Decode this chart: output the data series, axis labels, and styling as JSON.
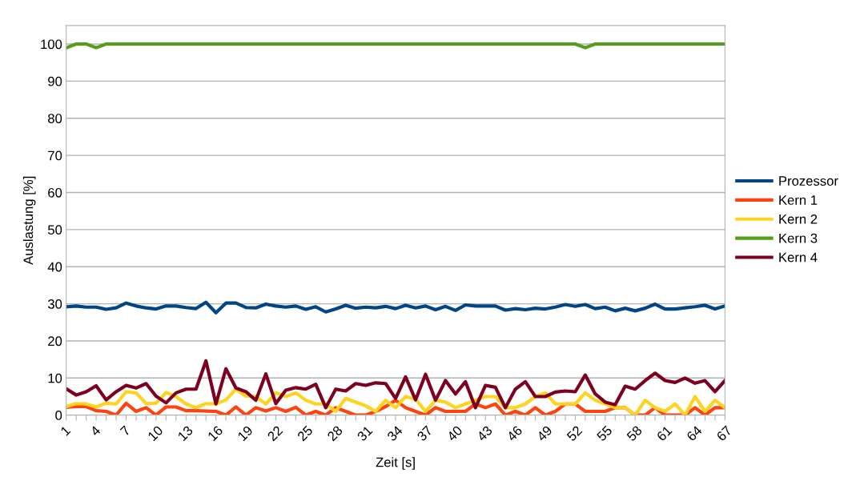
{
  "chart_data": {
    "type": "line",
    "xlabel": "Zeit [s]",
    "ylabel": "Auslastung [%]",
    "categories": [
      "1",
      null,
      null,
      "4",
      null,
      null,
      "7",
      null,
      null,
      "10",
      null,
      null,
      "13",
      null,
      null,
      "16",
      null,
      null,
      "19",
      null,
      null,
      "22",
      null,
      null,
      "25",
      null,
      null,
      "28",
      null,
      null,
      "31",
      null,
      null,
      "34",
      null,
      null,
      "37",
      null,
      null,
      "40",
      null,
      null,
      "43",
      null,
      null,
      "46",
      null,
      null,
      "49",
      null,
      null,
      "52",
      null,
      null,
      "55",
      null,
      null,
      "58",
      null,
      null,
      "61",
      null,
      null,
      "64",
      null,
      null,
      "67"
    ],
    "ylim": [
      0,
      105
    ],
    "yticks": [
      0,
      10,
      20,
      30,
      40,
      50,
      60,
      70,
      80,
      90,
      100
    ],
    "grid": "y",
    "legend": "right",
    "marker": "none",
    "line_style": "solid",
    "series": [
      {
        "name": "Prozessor",
        "color": "#004586",
        "values": [
          29.2,
          29.4,
          29.1,
          29.1,
          28.5,
          28.9,
          30.2,
          29.4,
          28.9,
          28.6,
          29.4,
          29.4,
          29.0,
          28.7,
          30.4,
          27.6,
          30.2,
          30.2,
          29.0,
          28.9,
          29.9,
          29.4,
          29.1,
          29.4,
          28.5,
          29.2,
          27.8,
          28.6,
          29.6,
          28.8,
          29.1,
          28.9,
          29.3,
          28.7,
          29.6,
          28.9,
          29.4,
          28.4,
          29.3,
          28.2,
          29.7,
          29.4,
          29.4,
          29.4,
          28.3,
          28.7,
          28.4,
          28.8,
          28.6,
          29.1,
          29.8,
          29.3,
          29.8,
          28.7,
          29.1,
          28.1,
          28.8,
          28.1,
          28.8,
          29.9,
          28.6,
          28.6,
          28.9,
          29.2,
          29.6,
          28.6,
          29.4
        ]
      },
      {
        "name": "Kern 1",
        "color": "#ff420e",
        "values": [
          2.1,
          2.3,
          2.3,
          1.2,
          1.0,
          0,
          3.2,
          1.0,
          2.0,
          0,
          2.2,
          2.2,
          1.2,
          1.2,
          1.1,
          1.0,
          0,
          2.2,
          0,
          2.0,
          1.1,
          2.0,
          1.0,
          2.1,
          0,
          1.0,
          0,
          2.0,
          1.0,
          0,
          0,
          1.0,
          2.3,
          4.0,
          2.0,
          1.0,
          0,
          2.0,
          1.0,
          1.0,
          1.0,
          3.0,
          2.0,
          3.0,
          0,
          1.0,
          0,
          2.0,
          0,
          1.0,
          3.0,
          3.0,
          1.0,
          1.0,
          1.0,
          2.0,
          2.0,
          0,
          0,
          2.0,
          0,
          0,
          0,
          2.0,
          0,
          2.0,
          2.0
        ]
      },
      {
        "name": "Kern 2",
        "color": "#ffd320",
        "values": [
          2.3,
          3.1,
          3.0,
          2.2,
          3.2,
          3.0,
          6.3,
          6.0,
          3.1,
          3.2,
          6.1,
          5.0,
          3.0,
          2.0,
          3.1,
          3.0,
          4.1,
          7.0,
          5.1,
          5.0,
          3.0,
          6.0,
          5.0,
          6.0,
          4.0,
          3.0,
          3.0,
          1.0,
          4.5,
          3.5,
          2.5,
          1.0,
          4.0,
          2.0,
          5.0,
          4.3,
          1.0,
          4.0,
          3.5,
          2.0,
          3.0,
          4.0,
          5.0,
          5.0,
          2.0,
          2.0,
          3.0,
          5.0,
          6.0,
          3.0,
          3.0,
          3.0,
          6.0,
          4.0,
          3.0,
          2.0,
          2.0,
          0,
          4.0,
          2.0,
          1.0,
          3.0,
          0,
          5.0,
          1.0,
          4.0,
          2.0
        ]
      },
      {
        "name": "Kern 3",
        "color": "#579d1c",
        "values": [
          99,
          100,
          100,
          99,
          100,
          100,
          100,
          100,
          100,
          100,
          100,
          100,
          100,
          100,
          100,
          100,
          100,
          100,
          100,
          100,
          100,
          100,
          100,
          100,
          100,
          100,
          100,
          100,
          100,
          100,
          100,
          100,
          100,
          100,
          100,
          100,
          100,
          100,
          100,
          100,
          100,
          100,
          100,
          100,
          100,
          100,
          100,
          100,
          100,
          100,
          100,
          100,
          99,
          100,
          100,
          100,
          100,
          100,
          100,
          100,
          100,
          100,
          100,
          100,
          100,
          100,
          100
        ]
      },
      {
        "name": "Kern 4",
        "color": "#7e0021",
        "values": [
          7.1,
          5.4,
          6.3,
          7.9,
          4.1,
          6.3,
          8.0,
          7.3,
          8.5,
          5.1,
          3.3,
          6.0,
          7.0,
          7.0,
          14.6,
          3.0,
          12.5,
          7.3,
          6.3,
          4.0,
          11.1,
          3.1,
          6.7,
          7.4,
          7.0,
          8.3,
          2.0,
          7.0,
          6.5,
          8.5,
          8.0,
          8.7,
          8.5,
          4.5,
          10.3,
          4.1,
          11.0,
          4.0,
          9.3,
          5.7,
          9.0,
          2.0,
          8.0,
          7.5,
          2.0,
          7.0,
          9.0,
          5.0,
          5.0,
          6.2,
          6.5,
          6.3,
          10.8,
          5.7,
          3.5,
          2.8,
          7.8,
          7.0,
          9.3,
          11.3,
          9.3,
          8.8,
          10.0,
          8.6,
          9.3,
          6.3,
          9.3
        ]
      }
    ]
  }
}
